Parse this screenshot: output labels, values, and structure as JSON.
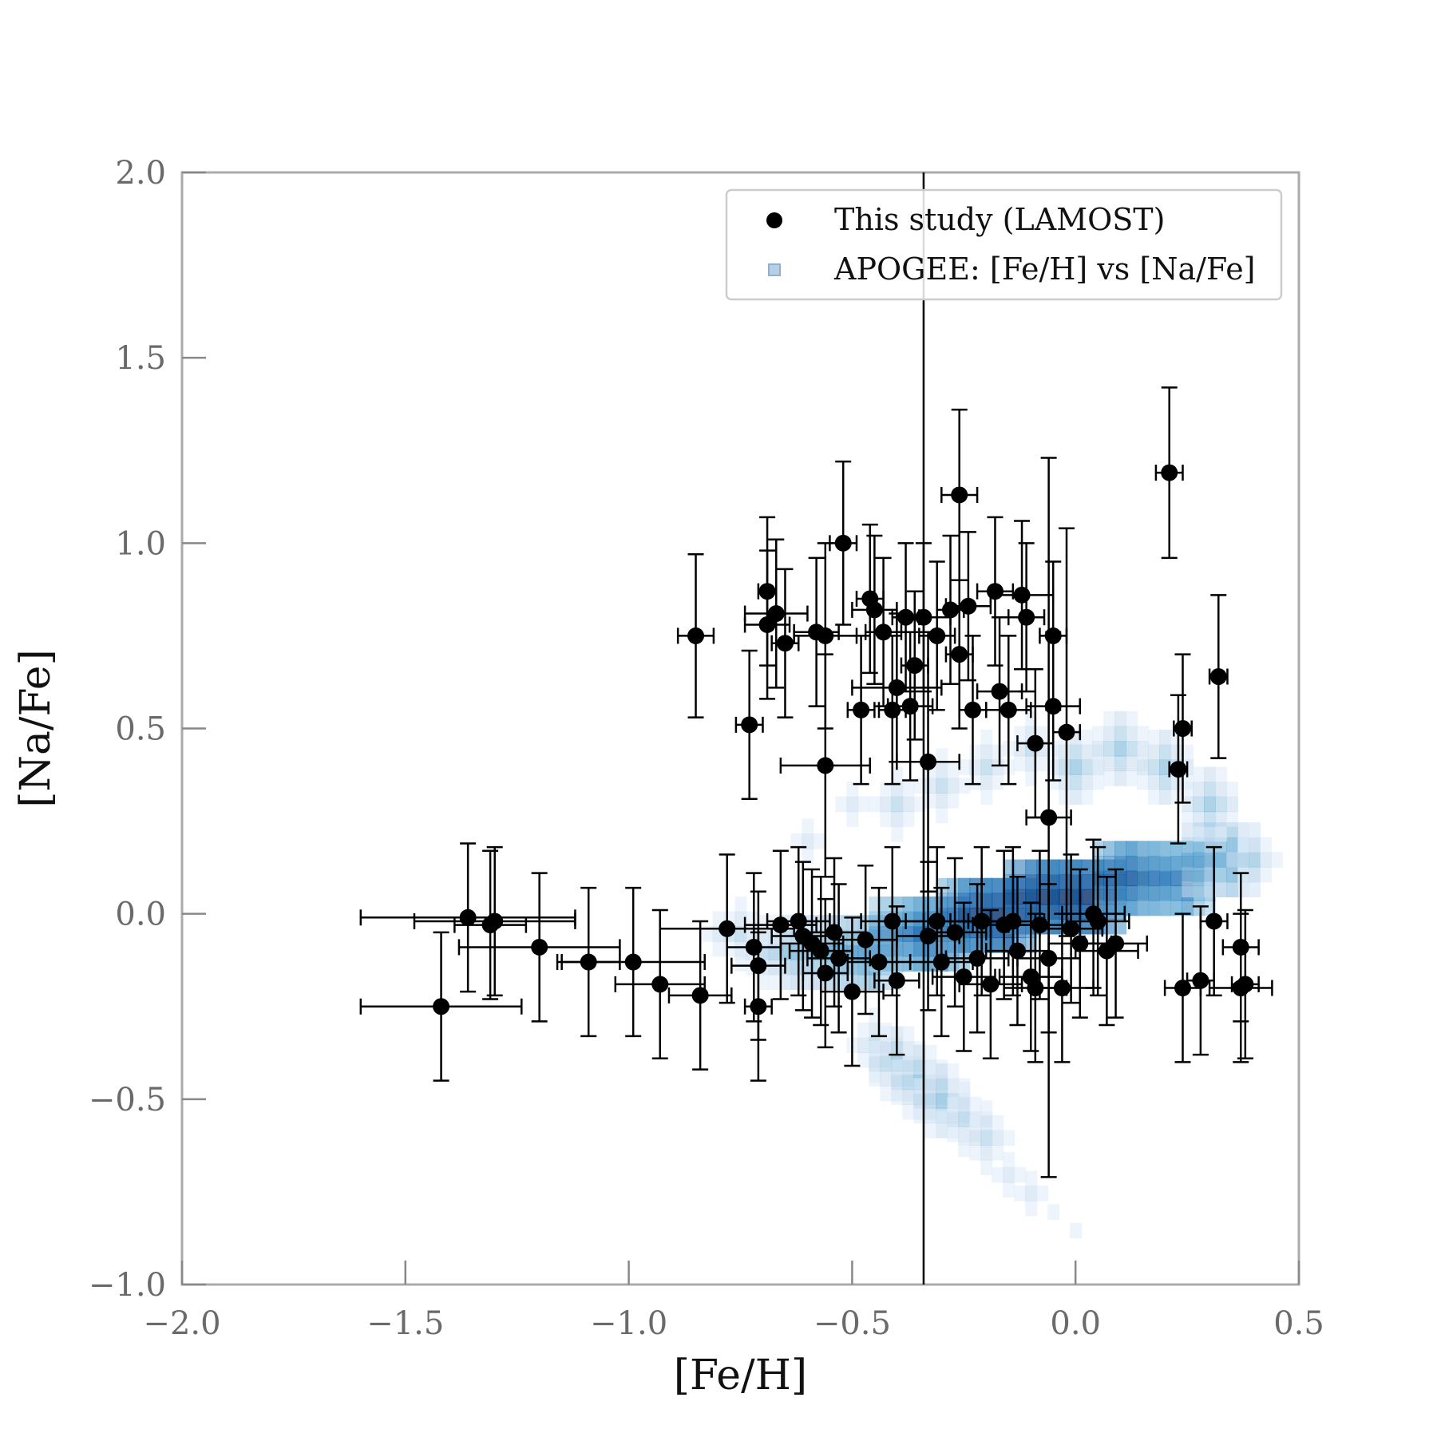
{
  "chart_data": {
    "type": "scatter",
    "xlabel": "[Fe/H]",
    "ylabel": "[Na/Fe]",
    "xlim": [
      -2.0,
      0.5
    ],
    "ylim": [
      -1.0,
      2.0
    ],
    "x_ticks": [
      "−2.0",
      "−1.5",
      "−1.0",
      "−0.5",
      "0.0",
      "0.5"
    ],
    "x_tick_values": [
      -2.0,
      -1.5,
      -1.0,
      -0.5,
      0.0,
      0.5
    ],
    "y_ticks": [
      "−1.0",
      "−0.5",
      "0.0",
      "0.5",
      "1.0",
      "1.5",
      "2.0"
    ],
    "y_tick_values": [
      -1.0,
      -0.5,
      0.0,
      0.5,
      1.0,
      1.5,
      2.0
    ],
    "grid": false,
    "legend_position": "top-right",
    "vertical_line_x": -0.34,
    "colors": {
      "points": "#000000",
      "density": "#1f5fa8",
      "axes": "#aaaaaa"
    },
    "series": [
      {
        "name": "This study (LAMOST)",
        "type": "errorbar-scatter",
        "points": [
          {
            "x": -1.42,
            "y": -0.25,
            "xerr": 0.18,
            "yerr": 0.2
          },
          {
            "x": -1.36,
            "y": -0.01,
            "xerr": 0.24,
            "yerr": 0.2
          },
          {
            "x": -1.31,
            "y": -0.03,
            "xerr": 0.08,
            "yerr": 0.2
          },
          {
            "x": -1.3,
            "y": -0.02,
            "xerr": 0.18,
            "yerr": 0.2
          },
          {
            "x": -1.2,
            "y": -0.09,
            "xerr": 0.18,
            "yerr": 0.2
          },
          {
            "x": -1.09,
            "y": -0.13,
            "xerr": 0.07,
            "yerr": 0.2
          },
          {
            "x": -0.99,
            "y": -0.13,
            "xerr": 0.16,
            "yerr": 0.2
          },
          {
            "x": -0.93,
            "y": -0.19,
            "xerr": 0.1,
            "yerr": 0.2
          },
          {
            "x": -0.84,
            "y": -0.22,
            "xerr": 0.07,
            "yerr": 0.2
          },
          {
            "x": -0.85,
            "y": 0.75,
            "xerr": 0.04,
            "yerr": 0.22
          },
          {
            "x": -0.78,
            "y": -0.04,
            "xerr": 0.15,
            "yerr": 0.2
          },
          {
            "x": -0.73,
            "y": 0.51,
            "xerr": 0.03,
            "yerr": 0.2
          },
          {
            "x": -0.72,
            "y": -0.09,
            "xerr": 0.06,
            "yerr": 0.2
          },
          {
            "x": -0.71,
            "y": -0.14,
            "xerr": 0.06,
            "yerr": 0.2
          },
          {
            "x": -0.71,
            "y": -0.25,
            "xerr": 0.03,
            "yerr": 0.2
          },
          {
            "x": -0.69,
            "y": 0.87,
            "xerr": 0.02,
            "yerr": 0.2
          },
          {
            "x": -0.69,
            "y": 0.78,
            "xerr": 0.05,
            "yerr": 0.2
          },
          {
            "x": -0.67,
            "y": 0.81,
            "xerr": 0.07,
            "yerr": 0.2
          },
          {
            "x": -0.66,
            "y": -0.03,
            "xerr": 0.08,
            "yerr": 0.2
          },
          {
            "x": -0.65,
            "y": 0.73,
            "xerr": 0.03,
            "yerr": 0.2
          },
          {
            "x": -0.62,
            "y": -0.02,
            "xerr": 0.07,
            "yerr": 0.2
          },
          {
            "x": -0.61,
            "y": -0.06,
            "xerr": 0.07,
            "yerr": 0.2
          },
          {
            "x": -0.59,
            "y": -0.08,
            "xerr": 0.07,
            "yerr": 0.2
          },
          {
            "x": -0.58,
            "y": 0.76,
            "xerr": 0.05,
            "yerr": 0.2
          },
          {
            "x": -0.57,
            "y": -0.1,
            "xerr": 0.07,
            "yerr": 0.2
          },
          {
            "x": -0.56,
            "y": 0.4,
            "xerr": 0.1,
            "yerr": 0.3
          },
          {
            "x": -0.56,
            "y": 0.75,
            "xerr": 0.07,
            "yerr": 0.25
          },
          {
            "x": -0.56,
            "y": -0.16,
            "xerr": 0.05,
            "yerr": 0.2
          },
          {
            "x": -0.54,
            "y": -0.05,
            "xerr": 0.07,
            "yerr": 0.2
          },
          {
            "x": -0.53,
            "y": -0.12,
            "xerr": 0.07,
            "yerr": 0.2
          },
          {
            "x": -0.52,
            "y": 1.0,
            "xerr": 0.03,
            "yerr": 0.22
          },
          {
            "x": -0.5,
            "y": -0.21,
            "xerr": 0.07,
            "yerr": 0.2
          },
          {
            "x": -0.48,
            "y": 0.55,
            "xerr": 0.03,
            "yerr": 0.2
          },
          {
            "x": -0.47,
            "y": -0.07,
            "xerr": 0.07,
            "yerr": 0.2
          },
          {
            "x": -0.46,
            "y": 0.85,
            "xerr": 0.03,
            "yerr": 0.2
          },
          {
            "x": -0.45,
            "y": 0.82,
            "xerr": 0.05,
            "yerr": 0.2
          },
          {
            "x": -0.44,
            "y": -0.13,
            "xerr": 0.07,
            "yerr": 0.2
          },
          {
            "x": -0.43,
            "y": 0.76,
            "xerr": 0.04,
            "yerr": 0.2
          },
          {
            "x": -0.41,
            "y": -0.02,
            "xerr": 0.07,
            "yerr": 0.2
          },
          {
            "x": -0.41,
            "y": 0.55,
            "xerr": 0.03,
            "yerr": 0.2
          },
          {
            "x": -0.4,
            "y": 0.61,
            "xerr": 0.1,
            "yerr": 0.2
          },
          {
            "x": -0.4,
            "y": -0.18,
            "xerr": 0.05,
            "yerr": 0.2
          },
          {
            "x": -0.38,
            "y": 0.8,
            "xerr": 0.03,
            "yerr": 0.2
          },
          {
            "x": -0.37,
            "y": 0.56,
            "xerr": 0.05,
            "yerr": 0.2
          },
          {
            "x": -0.36,
            "y": 0.67,
            "xerr": 0.03,
            "yerr": 0.2
          },
          {
            "x": -0.34,
            "y": 0.8,
            "xerr": 0.06,
            "yerr": 0.2
          },
          {
            "x": -0.33,
            "y": 0.41,
            "xerr": 0.07,
            "yerr": 0.35
          },
          {
            "x": -0.33,
            "y": -0.06,
            "xerr": 0.07,
            "yerr": 0.2
          },
          {
            "x": -0.31,
            "y": 0.75,
            "xerr": 0.04,
            "yerr": 0.2
          },
          {
            "x": -0.31,
            "y": -0.02,
            "xerr": 0.07,
            "yerr": 0.2
          },
          {
            "x": -0.3,
            "y": -0.13,
            "xerr": 0.07,
            "yerr": 0.2
          },
          {
            "x": -0.28,
            "y": 0.82,
            "xerr": 0.03,
            "yerr": 0.2
          },
          {
            "x": -0.27,
            "y": -0.05,
            "xerr": 0.07,
            "yerr": 0.2
          },
          {
            "x": -0.26,
            "y": 0.7,
            "xerr": 0.03,
            "yerr": 0.2
          },
          {
            "x": -0.26,
            "y": 1.13,
            "xerr": 0.04,
            "yerr": 0.23
          },
          {
            "x": -0.25,
            "y": -0.17,
            "xerr": 0.07,
            "yerr": 0.2
          },
          {
            "x": -0.24,
            "y": 0.83,
            "xerr": 0.05,
            "yerr": 0.2
          },
          {
            "x": -0.23,
            "y": 0.55,
            "xerr": 0.03,
            "yerr": 0.2
          },
          {
            "x": -0.22,
            "y": -0.12,
            "xerr": 0.07,
            "yerr": 0.2
          },
          {
            "x": -0.21,
            "y": -0.02,
            "xerr": 0.07,
            "yerr": 0.2
          },
          {
            "x": -0.19,
            "y": -0.19,
            "xerr": 0.07,
            "yerr": 0.2
          },
          {
            "x": -0.18,
            "y": 0.87,
            "xerr": 0.04,
            "yerr": 0.2
          },
          {
            "x": -0.17,
            "y": 0.6,
            "xerr": 0.05,
            "yerr": 0.2
          },
          {
            "x": -0.16,
            "y": -0.03,
            "xerr": 0.07,
            "yerr": 0.2
          },
          {
            "x": -0.15,
            "y": 0.55,
            "xerr": 0.05,
            "yerr": 0.2
          },
          {
            "x": -0.14,
            "y": -0.02,
            "xerr": 0.07,
            "yerr": 0.2
          },
          {
            "x": -0.13,
            "y": -0.1,
            "xerr": 0.07,
            "yerr": 0.2
          },
          {
            "x": -0.12,
            "y": 0.86,
            "xerr": 0.07,
            "yerr": 0.2
          },
          {
            "x": -0.11,
            "y": 0.8,
            "xerr": 0.04,
            "yerr": 0.2
          },
          {
            "x": -0.1,
            "y": -0.17,
            "xerr": 0.07,
            "yerr": 0.2
          },
          {
            "x": -0.09,
            "y": 0.46,
            "xerr": 0.04,
            "yerr": 0.2
          },
          {
            "x": -0.09,
            "y": -0.2,
            "xerr": 0.07,
            "yerr": 0.2
          },
          {
            "x": -0.08,
            "y": -0.03,
            "xerr": 0.07,
            "yerr": 0.2
          },
          {
            "x": -0.06,
            "y": -0.12,
            "xerr": 0.07,
            "yerr": 0.2
          },
          {
            "x": -0.06,
            "y": 0.26,
            "xerr": 0.05,
            "yerr": 0.97
          },
          {
            "x": -0.05,
            "y": 0.75,
            "xerr": 0.03,
            "yerr": 0.2
          },
          {
            "x": -0.05,
            "y": 0.56,
            "xerr": 0.06,
            "yerr": 0.2
          },
          {
            "x": -0.03,
            "y": -0.2,
            "xerr": 0.07,
            "yerr": 0.2
          },
          {
            "x": -0.02,
            "y": 0.49,
            "xerr": 0.03,
            "yerr": 0.55
          },
          {
            "x": -0.01,
            "y": -0.04,
            "xerr": 0.07,
            "yerr": 0.2
          },
          {
            "x": 0.01,
            "y": -0.08,
            "xerr": 0.07,
            "yerr": 0.2
          },
          {
            "x": 0.04,
            "y": 0.0,
            "xerr": 0.07,
            "yerr": 0.2
          },
          {
            "x": 0.05,
            "y": -0.02,
            "xerr": 0.07,
            "yerr": 0.2
          },
          {
            "x": 0.07,
            "y": -0.1,
            "xerr": 0.07,
            "yerr": 0.2
          },
          {
            "x": 0.09,
            "y": -0.08,
            "xerr": 0.07,
            "yerr": 0.2
          },
          {
            "x": 0.21,
            "y": 1.19,
            "xerr": 0.03,
            "yerr": 0.23
          },
          {
            "x": 0.23,
            "y": 0.39,
            "xerr": 0.02,
            "yerr": 0.2
          },
          {
            "x": 0.24,
            "y": 0.5,
            "xerr": 0.02,
            "yerr": 0.2
          },
          {
            "x": 0.24,
            "y": -0.2,
            "xerr": 0.04,
            "yerr": 0.2
          },
          {
            "x": 0.28,
            "y": -0.18,
            "xerr": 0.03,
            "yerr": 0.2
          },
          {
            "x": 0.31,
            "y": -0.02,
            "xerr": 0.03,
            "yerr": 0.2
          },
          {
            "x": 0.32,
            "y": 0.64,
            "xerr": 0.02,
            "yerr": 0.22
          },
          {
            "x": 0.37,
            "y": -0.09,
            "xerr": 0.04,
            "yerr": 0.2
          },
          {
            "x": 0.37,
            "y": -0.2,
            "xerr": 0.07,
            "yerr": 0.2
          },
          {
            "x": 0.38,
            "y": -0.19,
            "xerr": 0.03,
            "yerr": 0.2
          }
        ]
      },
      {
        "name": "APOGEE: [Fe/H] vs [Na/Fe]",
        "type": "density",
        "cells": [
          [
            -0.8,
            -0.05,
            2
          ],
          [
            -0.75,
            -0.05,
            3
          ],
          [
            -0.7,
            -0.1,
            3
          ],
          [
            -0.65,
            -0.1,
            4
          ],
          [
            -0.6,
            -0.1,
            5
          ],
          [
            -0.55,
            -0.1,
            5
          ],
          [
            -0.5,
            -0.1,
            6
          ],
          [
            -0.45,
            -0.1,
            6
          ],
          [
            -0.4,
            -0.05,
            7
          ],
          [
            -0.35,
            -0.05,
            7
          ],
          [
            -0.3,
            -0.05,
            8
          ],
          [
            -0.25,
            0.0,
            8
          ],
          [
            -0.2,
            0.0,
            9
          ],
          [
            -0.15,
            0.0,
            9
          ],
          [
            -0.1,
            0.05,
            9
          ],
          [
            -0.05,
            0.05,
            9
          ],
          [
            0.0,
            0.05,
            9
          ],
          [
            0.05,
            0.05,
            9
          ],
          [
            0.1,
            0.1,
            8
          ],
          [
            0.15,
            0.1,
            8
          ],
          [
            0.2,
            0.1,
            7
          ],
          [
            0.25,
            0.1,
            7
          ],
          [
            0.3,
            0.15,
            6
          ],
          [
            0.35,
            0.15,
            5
          ],
          [
            0.4,
            0.15,
            3
          ],
          [
            -0.45,
            -0.35,
            3
          ],
          [
            -0.4,
            -0.4,
            4
          ],
          [
            -0.35,
            -0.45,
            4
          ],
          [
            -0.3,
            -0.5,
            4
          ],
          [
            -0.25,
            -0.55,
            3
          ],
          [
            -0.2,
            -0.6,
            3
          ],
          [
            -0.15,
            -0.7,
            2
          ],
          [
            -0.1,
            -0.75,
            2
          ],
          [
            -0.05,
            -0.8,
            1
          ],
          [
            0.0,
            -0.85,
            1
          ],
          [
            -0.6,
            0.2,
            2
          ],
          [
            -0.5,
            0.3,
            2
          ],
          [
            -0.4,
            0.3,
            3
          ],
          [
            -0.3,
            0.35,
            3
          ],
          [
            -0.2,
            0.4,
            3
          ],
          [
            -0.1,
            0.45,
            3
          ],
          [
            0.0,
            0.4,
            4
          ],
          [
            0.1,
            0.45,
            4
          ],
          [
            0.2,
            0.4,
            4
          ],
          [
            0.3,
            0.3,
            4
          ]
        ]
      }
    ]
  },
  "legend": {
    "items": [
      {
        "label": "This study (LAMOST)",
        "symbol": "circle"
      },
      {
        "label": "APOGEE: [Fe/H] vs [Na/Fe]",
        "symbol": "square"
      }
    ]
  }
}
